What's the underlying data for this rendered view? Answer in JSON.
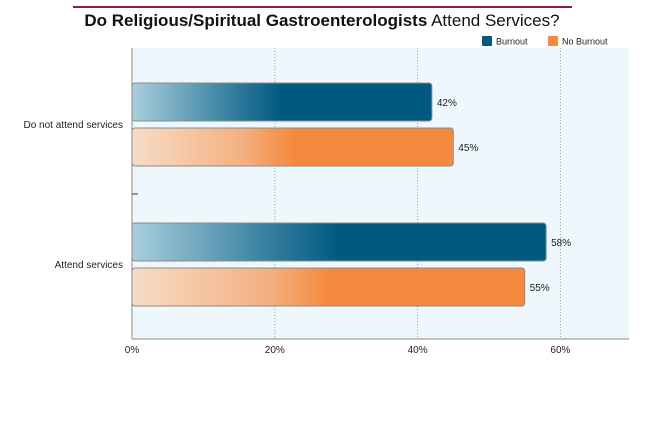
{
  "chart_data": {
    "type": "bar",
    "orientation": "horizontal",
    "title_bold": "Do Religious/Spiritual Gastroenterologists",
    "title_regular": "Attend Services?",
    "categories": [
      "Do not attend services",
      "Attend services"
    ],
    "series": [
      {
        "name": "Burnout",
        "values": [
          42,
          58
        ],
        "color": "#005a80"
      },
      {
        "name": "No Burnout",
        "values": [
          45,
          55
        ],
        "color": "#f58a3f"
      }
    ],
    "value_suffix": "%",
    "x_ticks": [
      "0%",
      "20%",
      "40%",
      "60%"
    ],
    "xlim": [
      0,
      70
    ],
    "grid": "vertical dotted",
    "legend_position": "top-right"
  },
  "colors": {
    "title_rule": "#8c1c3a",
    "plot_bg": "#eef8fc",
    "axis": "#888888"
  }
}
